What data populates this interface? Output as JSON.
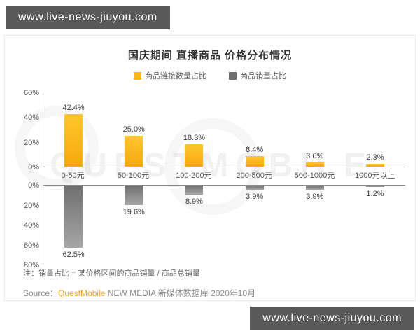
{
  "banner": {
    "text": "www.live-news-jiuyou.com"
  },
  "watermark": {
    "text": "QUESTMOBILE"
  },
  "chart_data": {
    "type": "bar",
    "orientation": "diverging-vertical",
    "title": "国庆期间 直播商品 价格分布情况",
    "categories": [
      "0-50元",
      "50-100元",
      "100-200元",
      "200-500元",
      "500-1000元",
      "1000元以上"
    ],
    "series": [
      {
        "name": "商品链接数量占比",
        "direction": "up",
        "color": "#F9B915",
        "values": [
          42.4,
          25.0,
          18.3,
          8.4,
          3.6,
          2.3
        ],
        "labels": [
          "42.4%",
          "25.0%",
          "18.3%",
          "8.4%",
          "3.6%",
          "2.3%"
        ],
        "axis_max": 60,
        "ticks_top_to_bottom": [
          "60%",
          "40%",
          "20%",
          "0%"
        ]
      },
      {
        "name": "商品销量占比",
        "direction": "down",
        "color": "#8C8C8C",
        "values": [
          62.5,
          19.6,
          8.9,
          3.9,
          3.9,
          1.2
        ],
        "labels": [
          "62.5%",
          "19.6%",
          "8.9%",
          "3.9%",
          "3.9%",
          "1.2%"
        ],
        "axis_max": 80,
        "ticks_top_to_bottom": [
          "0%",
          "20%",
          "40%",
          "60%",
          "80%"
        ]
      }
    ],
    "legend_position": "top",
    "grid": false
  },
  "note": "注：销量占比 = 某价格区间的商品销量 / 商品总销量",
  "source": {
    "prefix": "Source：",
    "brand": "QuestMobile",
    "rest": " NEW MEDIA 新媒体数据库 2020年10月"
  },
  "colors": {
    "bar_yellow": "#F9B915",
    "bar_gray": "#8C8C8C",
    "brand_orange": "#F5A623",
    "banner_bg": "#595959",
    "axis": "#8A8A8A"
  }
}
